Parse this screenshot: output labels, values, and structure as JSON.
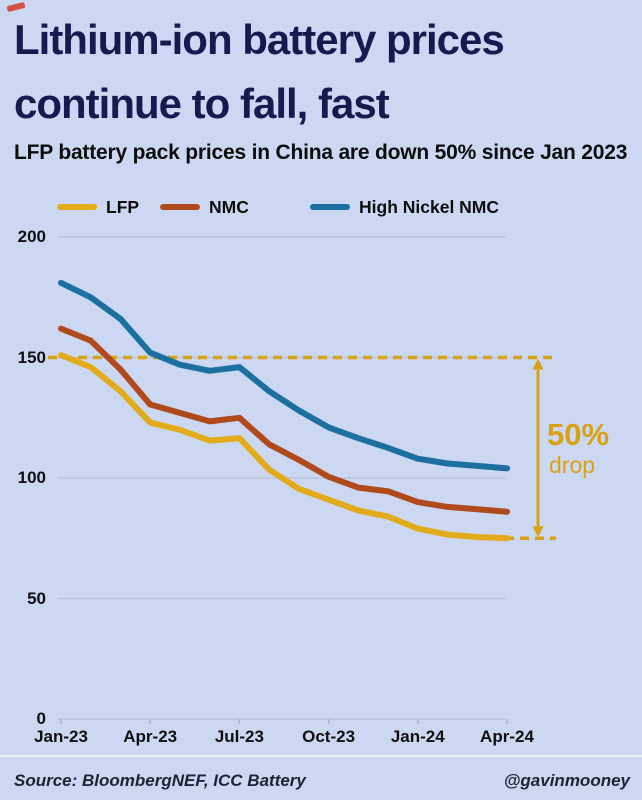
{
  "header": {
    "title_lines": [
      "Lithium-ion battery prices",
      "continue to fall, fast"
    ],
    "subtitle": "LFP battery pack prices in China are down 50% since Jan 2023",
    "title_color": "#141b4f"
  },
  "footer": {
    "source": "Source: BloombergNEF, ICC Battery",
    "handle": "@gavinmooney"
  },
  "chart_data": {
    "type": "line",
    "title": "Lithium-ion battery prices continue to fall, fast",
    "subtitle": "LFP battery pack prices in China are down 50% since Jan 2023",
    "x": [
      "Jan-23",
      "Feb-23",
      "Mar-23",
      "Apr-23",
      "May-23",
      "Jun-23",
      "Jul-23",
      "Aug-23",
      "Sep-23",
      "Oct-23",
      "Nov-23",
      "Dec-23",
      "Jan-24",
      "Feb-24",
      "Mar-24",
      "Apr-24"
    ],
    "x_tick_labels": [
      "Jan-23",
      "Apr-23",
      "Jul-23",
      "Oct-23",
      "Jan-24",
      "Apr-24"
    ],
    "y_ticks": [
      0,
      50,
      100,
      150,
      200
    ],
    "ylim": [
      0,
      200
    ],
    "grid": true,
    "legend_position": "top",
    "series": [
      {
        "name": "LFP",
        "color": "#e2ab1a",
        "values": [
          151,
          146,
          136,
          123,
          120,
          115.5,
          116.5,
          103.5,
          95.5,
          91,
          86.5,
          84,
          79,
          76.5,
          75.5,
          75
        ]
      },
      {
        "name": "NMC",
        "color": "#b04a1d",
        "values": [
          162,
          157,
          145,
          130.5,
          127,
          123.5,
          125,
          114,
          107.5,
          100.5,
          96,
          94.5,
          90,
          88,
          87,
          86
        ]
      },
      {
        "name": "High Nickel NMC",
        "color": "#1c6f9e",
        "values": [
          181,
          175,
          166,
          152,
          147,
          144.5,
          146,
          136,
          128,
          121,
          116.5,
          112.5,
          108,
          106,
          105,
          104
        ]
      }
    ],
    "annotations": {
      "dashed_from_value": 150,
      "dashed_to_value": 75,
      "label": "50%",
      "sublabel": "drop",
      "color": "#d7a213"
    }
  }
}
